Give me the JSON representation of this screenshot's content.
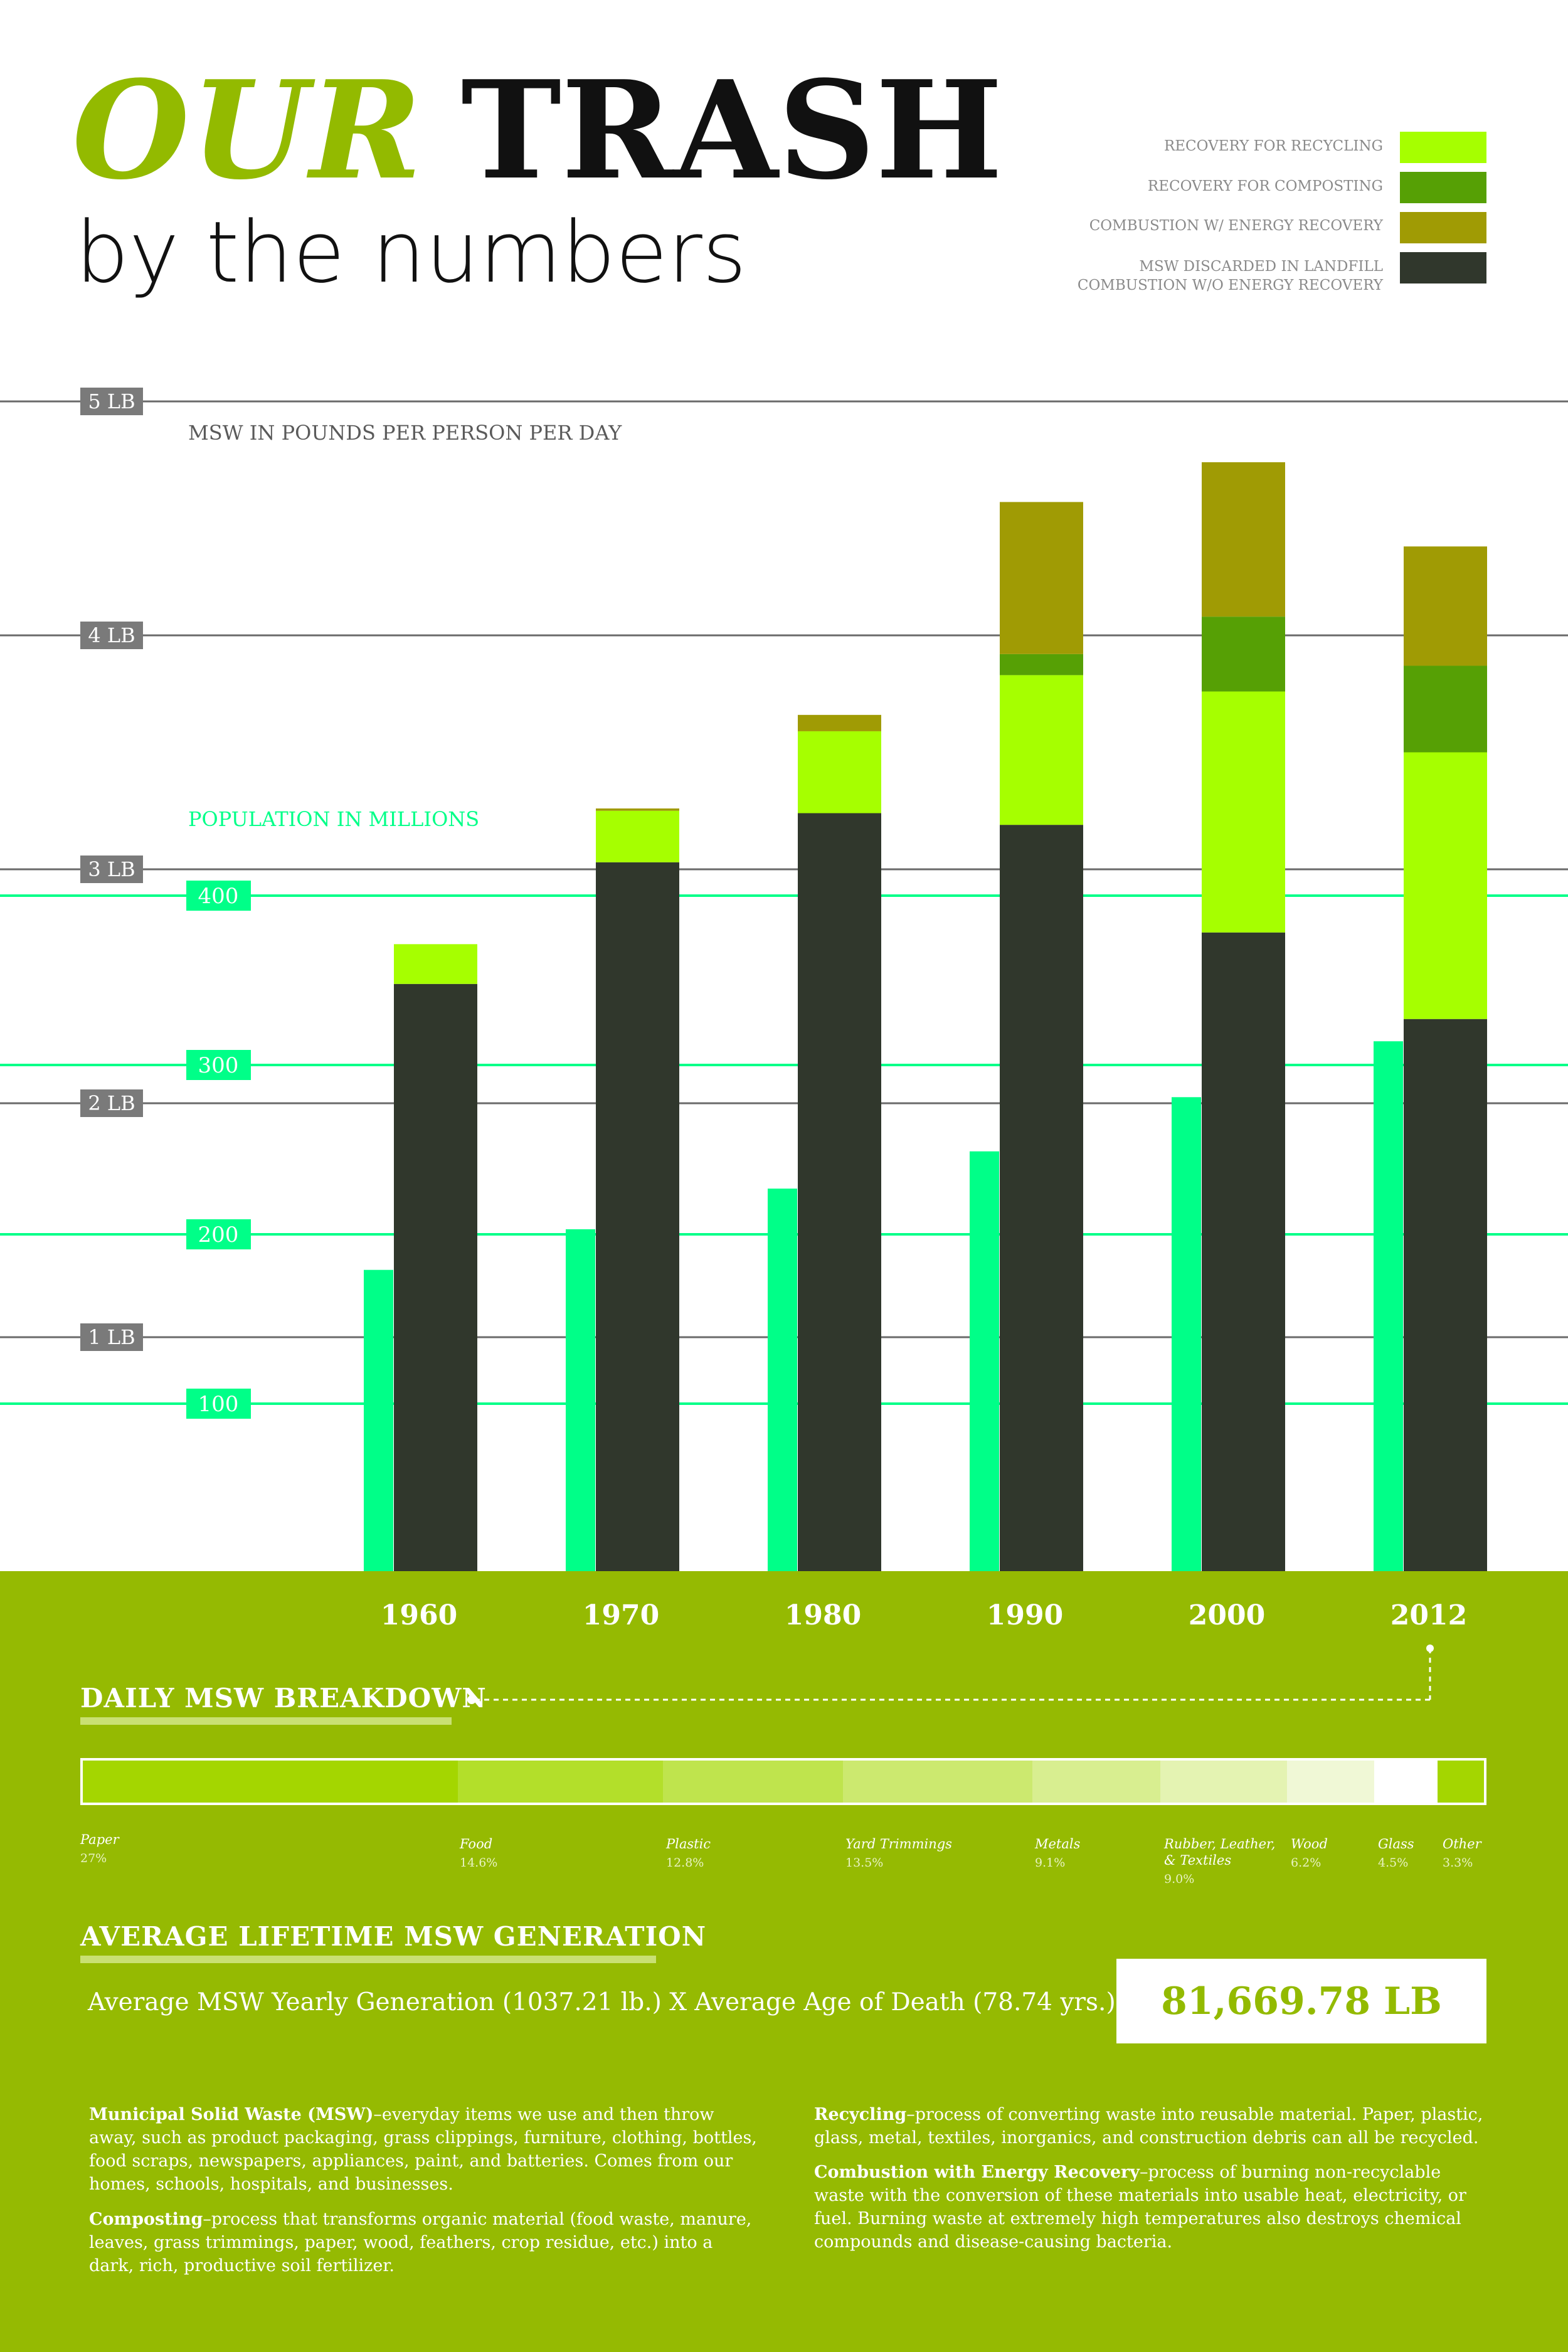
{
  "title": {
    "our": "OUR",
    "trash": "TRASH",
    "subtitle": "by the numbers"
  },
  "legend": [
    {
      "label": "RECOVERY FOR RECYCLING",
      "color": "#a6ff00"
    },
    {
      "label": "RECOVERY FOR COMPOSTING",
      "color": "#56a005"
    },
    {
      "label": "COMBUSTION W/ ENERGY RECOVERY",
      "color": "#a09b04"
    },
    {
      "label_lines": [
        "MSW DISCARDED IN LANDFILL",
        "COMBUSTION W/O ENERGY RECOVERY"
      ],
      "color": "#30372c"
    }
  ],
  "colors": {
    "recycling": "#a6ff00",
    "composting": "#56a005",
    "combustion": "#a09b04",
    "landfill": "#30372c",
    "population": "#00ff88",
    "panel": "#95ba02",
    "brand": "#93ba00",
    "lb_label_bg": "#7a7a7a",
    "lb_line": "#6a6a6a"
  },
  "chart_data": {
    "type": "bar",
    "title": "OUR TRASH by the numbers",
    "ylabel": "MSW IN POUNDS PER PERSON PER DAY",
    "y2label": "POPULATION IN MILLIONS",
    "categories": [
      "1960",
      "1970",
      "1980",
      "1990",
      "2000",
      "2012"
    ],
    "ylim": [
      0,
      5
    ],
    "y_ticks": [
      "1 LB",
      "2 LB",
      "3 LB",
      "4 LB",
      "5 LB"
    ],
    "y2_range": [
      0,
      450
    ],
    "y2_ticks": [
      "100",
      "200",
      "300",
      "400"
    ],
    "y2_tick_values": [
      100,
      200,
      300,
      400
    ],
    "stacked": true,
    "series": [
      {
        "name": "MSW DISCARDED IN LANDFILL COMBUSTION W/O ENERGY RECOVERY",
        "key": "landfill",
        "values": [
          2.51,
          3.03,
          3.24,
          3.19,
          2.73,
          2.36
        ]
      },
      {
        "name": "RECOVERY FOR RECYCLING",
        "key": "recycling",
        "values": [
          0.17,
          0.22,
          0.35,
          0.64,
          1.03,
          1.14
        ]
      },
      {
        "name": "RECOVERY FOR COMPOSTING",
        "key": "composting",
        "values": [
          0.0,
          0.0,
          0.0,
          0.09,
          0.32,
          0.37
        ]
      },
      {
        "name": "COMBUSTION W/ ENERGY RECOVERY",
        "key": "combustion",
        "values": [
          0.0,
          0.01,
          0.07,
          0.65,
          0.66,
          0.51
        ]
      }
    ],
    "population_series": {
      "name": "POPULATION IN MILLIONS",
      "values": [
        179,
        203,
        227,
        249,
        281,
        314
      ]
    }
  },
  "breakdown": {
    "title": "DAILY MSW BREAKDOWN",
    "items": [
      {
        "name": "Paper",
        "pct": "27%",
        "color": "#a4d600"
      },
      {
        "name": "Food",
        "pct": "14.6%",
        "color": "#b3df2a"
      },
      {
        "name": "Plastic",
        "pct": "12.8%",
        "color": "#bfe44d"
      },
      {
        "name": "Yard Trimmings",
        "pct": "13.5%",
        "color": "#cce96f"
      },
      {
        "name": "Metals",
        "pct": "9.1%",
        "color": "#d8ee90"
      },
      {
        "name": "Rubber, Leather, & Textiles",
        "pct": "9.0%",
        "color": "#e4f3b2"
      },
      {
        "name": "Wood",
        "pct": "6.2%",
        "color": "#f0f8d6"
      },
      {
        "name": "Glass",
        "pct": "4.5%",
        "color": "#ffffff"
      },
      {
        "name": "Other",
        "pct": "3.3%",
        "color": "#a4d600"
      }
    ]
  },
  "lifetime": {
    "title": "AVERAGE LIFETIME MSW GENERATION",
    "formula": "Average MSW Yearly Generation (1037.21 lb.)  X  Average Age of Death (78.74 yrs.) =",
    "result": "81,669.78 LB"
  },
  "definitions": {
    "msw_term": "Municipal Solid Waste (MSW)",
    "msw_text": "–everyday items we use and then throw away, such as product packaging, grass clippings, furniture, clothing, bottles, food scraps, newspapers, appliances, paint, and batteries. Comes from our homes, schools, hospitals, and businesses.",
    "composting_term": "Composting",
    "composting_text": "–process that transforms organic material (food waste, manure, leaves, grass trimmings, paper, wood, feathers, crop residue, etc.) into a dark, rich, productive soil fertilizer.",
    "recycling_term": "Recycling",
    "recycling_text": "–process of converting waste into reusable material. Paper, plastic, glass, metal, textiles, inorganics, and construction debris can all be recycled.",
    "combustion_term": "Combustion with Energy Recovery",
    "combustion_text": "–process of burning non-recyclable waste with the conversion of these materials into usable heat, electricity, or fuel. Burning waste at extremely high temperatures also destroys chemical compounds and disease-causing bacteria."
  }
}
